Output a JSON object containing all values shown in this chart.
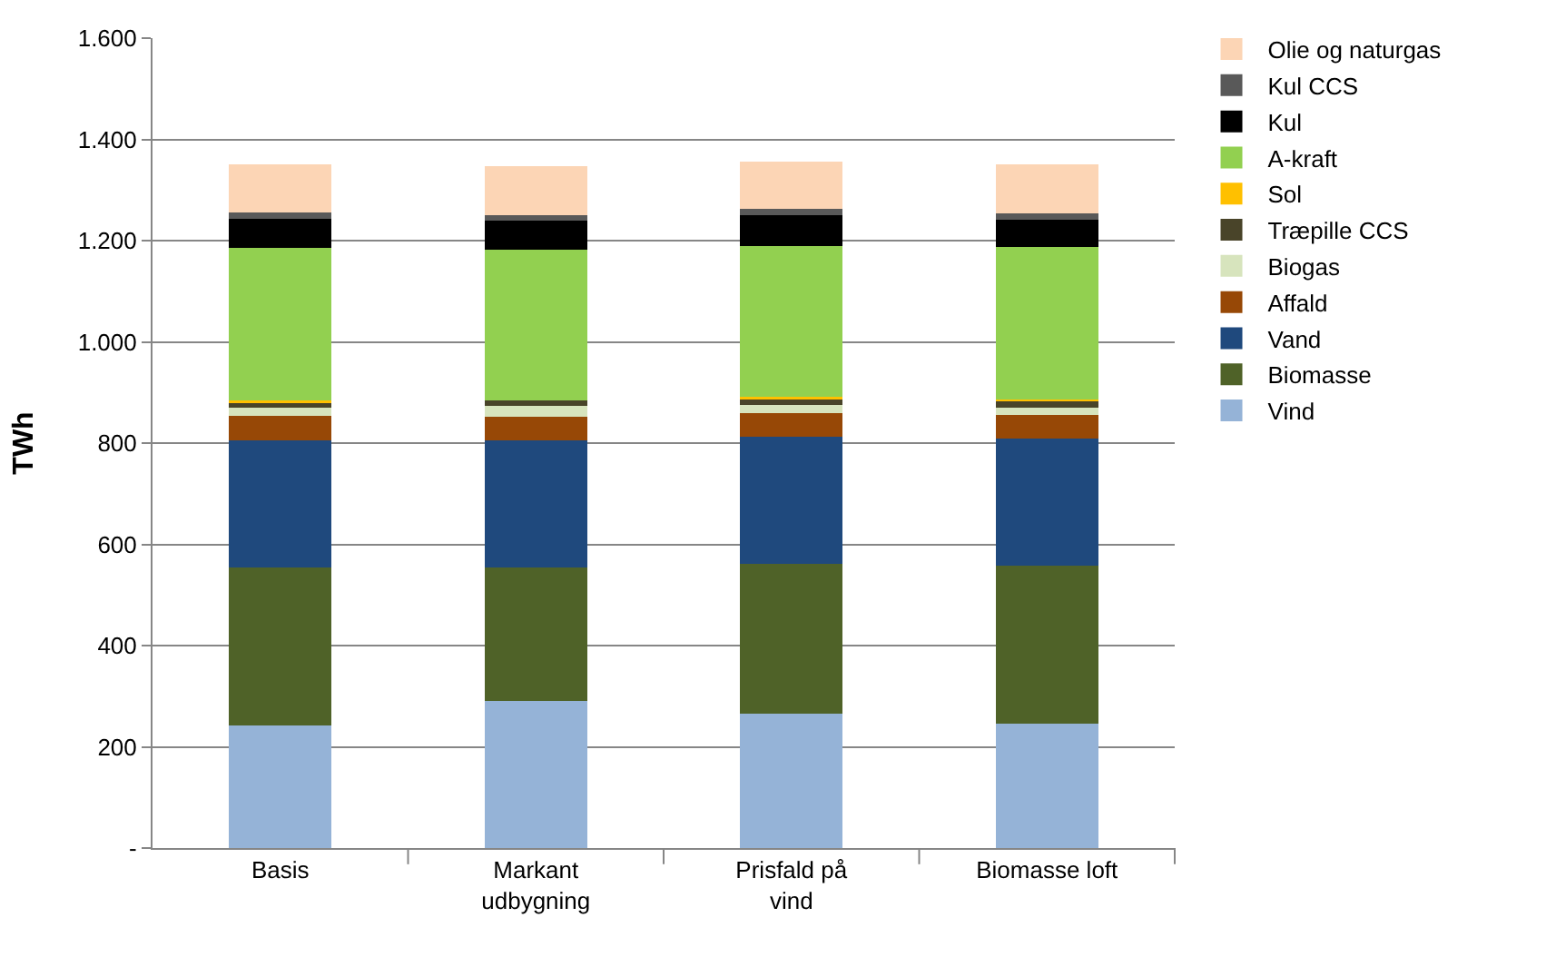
{
  "chart_data": {
    "type": "bar",
    "stacked": true,
    "ylabel": "TWh",
    "categories": [
      "Basis",
      "Markant udbygning",
      "Prisfald på vind",
      "Biomasse loft"
    ],
    "series": [
      {
        "name": "Vind",
        "color": "#95b3d7",
        "values": [
          243,
          291,
          265,
          245
        ]
      },
      {
        "name": "Biomasse",
        "color": "#4f6228",
        "values": [
          312,
          264,
          297,
          312
        ]
      },
      {
        "name": "Vand",
        "color": "#1f497d",
        "values": [
          251,
          251,
          251,
          252
        ]
      },
      {
        "name": "Affald",
        "color": "#974806",
        "values": [
          47,
          46,
          47,
          46
        ]
      },
      {
        "name": "Biogas",
        "color": "#d7e4bd",
        "values": [
          17,
          21,
          15,
          15
        ]
      },
      {
        "name": "Træpille CCS",
        "color": "#494429",
        "values": [
          12,
          11,
          13,
          14
        ]
      },
      {
        "name": "Sol",
        "color": "#ffc000",
        "values": [
          3,
          null,
          3,
          2
        ]
      },
      {
        "name": "A-kraft",
        "color": "#92d050",
        "values": [
          301,
          298,
          298,
          301
        ]
      },
      {
        "name": "Kul",
        "color": "#000000",
        "values": [
          57,
          57,
          62,
          55
        ]
      },
      {
        "name": "Kul CCS",
        "color": "#595959",
        "values": [
          12,
          12,
          11,
          12
        ]
      },
      {
        "name": "Olie og naturgas",
        "color": "#fcd5b5",
        "values": [
          96,
          96,
          94,
          97
        ]
      }
    ],
    "ylim": [
      0,
      1600
    ],
    "yticks": [
      {
        "value": 0,
        "label": "-"
      },
      {
        "value": 200,
        "label": "200"
      },
      {
        "value": 400,
        "label": "400"
      },
      {
        "value": 600,
        "label": "600"
      },
      {
        "value": 800,
        "label": "800"
      },
      {
        "value": 1000,
        "label": "1.000"
      },
      {
        "value": 1200,
        "label": "1.200"
      },
      {
        "value": 1400,
        "label": "1.400"
      },
      {
        "value": 1600,
        "label": "1.600"
      }
    ],
    "grid": "y",
    "legend": "right"
  }
}
